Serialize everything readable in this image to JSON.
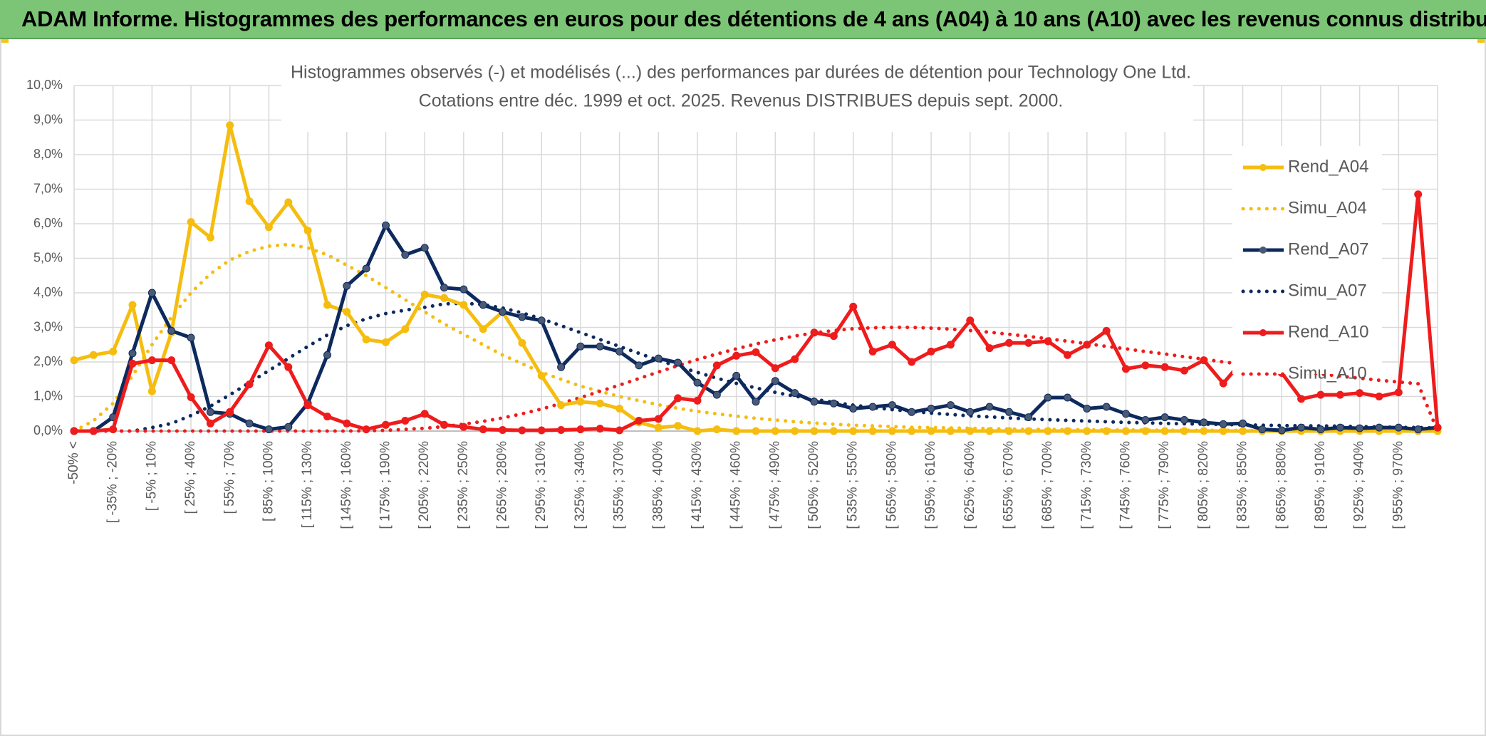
{
  "header": {
    "title": "ADAM Informe. Histogrammes des performances en euros pour des détentions de 4 ans (A04) à 10 ans (A10) avec les revenus connus distribués"
  },
  "colors": {
    "banner": "#7cc576",
    "a04": "#f5bd0f",
    "a07": "#0d2a5e",
    "a10": "#ee1c1c",
    "grid": "#d9d9d9",
    "axis_text": "#595959"
  },
  "chart_data": {
    "type": "line",
    "title": "Histogrammes observés (-) et modélisés (...) des performances par durées de détention pour Technology One Ltd.",
    "subtitle": "Cotations entre déc. 1999 et oct. 2025. Revenus DISTRIBUES depuis sept. 2000.",
    "ylim": [
      0,
      10
    ],
    "yticks": [
      "0,0%",
      "1,0%",
      "2,0%",
      "3,0%",
      "4,0%",
      "5,0%",
      "6,0%",
      "7,0%",
      "8,0%",
      "9,0%",
      "10,0%"
    ],
    "xticklabels": [
      "-50% <",
      "[ -35% ; -20%",
      "[ -5% ; 10%",
      "[ 25% ; 40%",
      "[ 55% ; 70%",
      "[ 85% ; 100%",
      "[ 115% ; 130%",
      "[ 145% ; 160%",
      "[ 175% ; 190%",
      "[ 205% ; 220%",
      "[ 235% ; 250%",
      "[ 265% ; 280%",
      "[ 295% ; 310%",
      "[ 325% ; 340%",
      "[ 355% ; 370%",
      "[ 385% ; 400%",
      "[ 415% ; 430%",
      "[ 445% ; 460%",
      "[ 475% ; 490%",
      "[ 505% ; 520%",
      "[ 535% ; 550%",
      "[ 565% ; 580%",
      "[ 595% ; 610%",
      "[ 625% ; 640%",
      "[ 655% ; 670%",
      "[ 685% ; 700%",
      "[ 715% ; 730%",
      "[ 745% ; 760%",
      "[ 775% ; 790%",
      "[ 805% ; 820%",
      "[ 835% ; 850%",
      "[ 865% ; 880%",
      "[ 895% ; 910%",
      "[ 925% ; 940%",
      "[ 955% ; 970%"
    ],
    "n_categories": 71,
    "legend_position": "right",
    "series": [
      {
        "name": "Rend_A04",
        "style": "solid",
        "color": "#f5bd0f",
        "values": [
          2.05,
          2.2,
          2.3,
          3.65,
          1.15,
          2.85,
          6.05,
          5.6,
          8.85,
          6.65,
          5.9,
          6.62,
          5.8,
          3.65,
          3.45,
          2.65,
          2.57,
          2.95,
          3.95,
          3.85,
          3.65,
          2.95,
          3.45,
          2.55,
          1.6,
          0.75,
          0.85,
          0.8,
          0.65,
          0.25,
          0.1,
          0.15,
          0.0,
          0.05,
          0.0,
          0.0,
          0.0,
          0.0,
          0.0,
          0.0,
          0.0,
          0.0,
          0.0,
          0.0,
          0.0,
          0.0,
          0.0,
          0.0,
          0.0,
          0.0,
          0.0,
          0.0,
          0.0,
          0.0,
          0.0,
          0.0,
          0.0,
          0.0,
          0.0,
          0.0,
          0.0,
          0.0,
          0.0,
          0.0,
          0.0,
          0.0,
          0.0,
          0.0,
          0.0,
          0.0,
          0.0
        ]
      },
      {
        "name": "Simu_A04",
        "style": "dotted",
        "color": "#f5bd0f",
        "values": [
          0.0,
          0.3,
          0.8,
          1.6,
          2.5,
          3.3,
          4.0,
          4.55,
          4.95,
          5.2,
          5.35,
          5.4,
          5.3,
          5.1,
          4.8,
          4.5,
          4.15,
          3.8,
          3.45,
          3.1,
          2.8,
          2.5,
          2.2,
          1.95,
          1.7,
          1.5,
          1.3,
          1.15,
          1.0,
          0.88,
          0.76,
          0.66,
          0.57,
          0.5,
          0.43,
          0.37,
          0.32,
          0.27,
          0.23,
          0.2,
          0.17,
          0.15,
          0.13,
          0.11,
          0.1,
          0.09,
          0.08,
          0.07,
          0.06,
          0.05,
          0.05,
          0.04,
          0.04,
          0.03,
          0.03,
          0.03,
          0.02,
          0.02,
          0.02,
          0.02,
          0.02,
          0.01,
          0.01,
          0.01,
          0.01,
          0.01,
          0.01,
          0.01,
          0.01,
          0.01,
          0.0
        ]
      },
      {
        "name": "Rend_A07",
        "style": "solid",
        "color": "#0d2a5e",
        "values": [
          0.0,
          0.0,
          0.4,
          2.25,
          4.0,
          2.9,
          2.7,
          0.55,
          0.5,
          0.22,
          0.05,
          0.12,
          0.8,
          2.2,
          4.2,
          4.7,
          5.95,
          5.1,
          5.3,
          4.15,
          4.1,
          3.65,
          3.45,
          3.3,
          3.2,
          1.85,
          2.45,
          2.45,
          2.3,
          1.9,
          2.1,
          1.98,
          1.4,
          1.05,
          1.6,
          0.85,
          1.45,
          1.1,
          0.85,
          0.8,
          0.65,
          0.7,
          0.75,
          0.55,
          0.65,
          0.75,
          0.55,
          0.7,
          0.55,
          0.4,
          0.97,
          0.97,
          0.65,
          0.7,
          0.5,
          0.32,
          0.4,
          0.32,
          0.25,
          0.2,
          0.22,
          0.05,
          0.02,
          0.1,
          0.05,
          0.1,
          0.08,
          0.1,
          0.1,
          0.05,
          0.1
        ]
      },
      {
        "name": "Simu_A07",
        "style": "dotted",
        "color": "#0d2a5e",
        "values": [
          0.0,
          0.0,
          0.0,
          0.0,
          0.1,
          0.22,
          0.45,
          0.72,
          1.05,
          1.4,
          1.75,
          2.1,
          2.45,
          2.78,
          3.05,
          3.25,
          3.4,
          3.5,
          3.58,
          3.68,
          3.7,
          3.66,
          3.56,
          3.42,
          3.25,
          3.05,
          2.85,
          2.65,
          2.45,
          2.25,
          2.05,
          1.87,
          1.7,
          1.53,
          1.38,
          1.25,
          1.12,
          1.01,
          0.92,
          0.83,
          0.75,
          0.68,
          0.62,
          0.57,
          0.52,
          0.48,
          0.44,
          0.41,
          0.38,
          0.35,
          0.33,
          0.31,
          0.29,
          0.27,
          0.25,
          0.24,
          0.22,
          0.21,
          0.2,
          0.19,
          0.18,
          0.17,
          0.16,
          0.15,
          0.15,
          0.14,
          0.13,
          0.12,
          0.11,
          0.1,
          0.09
        ]
      },
      {
        "name": "Rend_A10",
        "style": "solid",
        "color": "#ee1c1c",
        "values": [
          0.0,
          0.0,
          0.05,
          1.95,
          2.05,
          2.05,
          0.98,
          0.22,
          0.55,
          1.35,
          2.48,
          1.85,
          0.75,
          0.42,
          0.22,
          0.05,
          0.18,
          0.3,
          0.5,
          0.18,
          0.12,
          0.05,
          0.03,
          0.02,
          0.02,
          0.03,
          0.05,
          0.07,
          0.02,
          0.3,
          0.35,
          0.95,
          0.88,
          1.9,
          2.18,
          2.28,
          1.82,
          2.08,
          2.85,
          2.75,
          3.6,
          2.3,
          2.5,
          2.0,
          2.3,
          2.5,
          3.2,
          2.4,
          2.55,
          2.55,
          2.6,
          2.2,
          2.5,
          2.9,
          1.8,
          1.9,
          1.85,
          1.75,
          2.05,
          1.38,
          2.05,
          1.9,
          1.68,
          0.93,
          1.05,
          1.05,
          1.1,
          1.0,
          1.12,
          6.85,
          0.1
        ]
      },
      {
        "name": "Simu_A10",
        "style": "dotted",
        "color": "#ee1c1c",
        "values": [
          0.0,
          0.0,
          0.0,
          0.0,
          0.0,
          0.0,
          0.0,
          0.0,
          0.0,
          0.0,
          0.0,
          0.0,
          0.0,
          0.0,
          0.0,
          0.01,
          0.02,
          0.05,
          0.08,
          0.13,
          0.2,
          0.28,
          0.38,
          0.5,
          0.64,
          0.8,
          0.97,
          1.15,
          1.33,
          1.52,
          1.71,
          1.89,
          2.07,
          2.23,
          2.38,
          2.52,
          2.64,
          2.75,
          2.84,
          2.91,
          2.96,
          2.99,
          3.0,
          3.0,
          2.98,
          2.95,
          2.91,
          2.86,
          2.8,
          2.74,
          2.67,
          2.6,
          2.53,
          2.45,
          2.38,
          2.3,
          2.23,
          2.15,
          2.08,
          2.0,
          1.93,
          1.86,
          1.79,
          1.72,
          1.65,
          1.59,
          1.53,
          1.47,
          1.42,
          1.37,
          0.0
        ]
      }
    ]
  }
}
